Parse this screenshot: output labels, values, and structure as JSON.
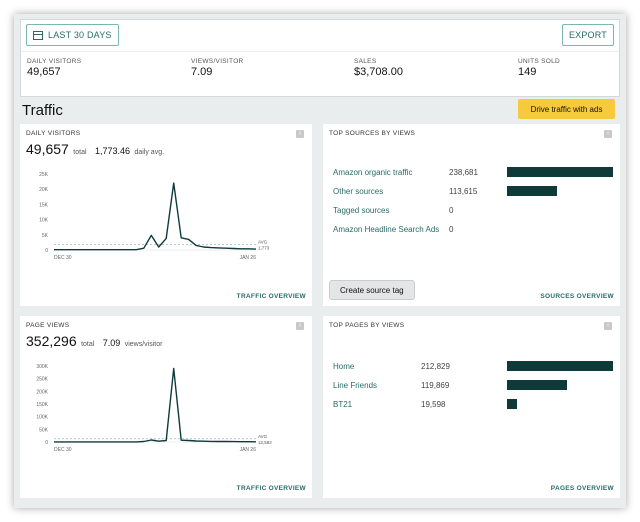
{
  "toolbar": {
    "date_range_label": "LAST 30 DAYS",
    "export_label": "EXPORT"
  },
  "metrics": [
    {
      "label": "DAILY VISITORS",
      "value": "49,657"
    },
    {
      "label": "VIEWS/VISITOR",
      "value": "7.09"
    },
    {
      "label": "SALES",
      "value": "$3,708.00"
    },
    {
      "label": "UNITS SOLD",
      "value": "149"
    }
  ],
  "section": {
    "title": "Traffic",
    "cta_label": "Drive traffic with ads"
  },
  "cards": {
    "daily_visitors": {
      "title": "DAILY VISITORS",
      "total": "49,657",
      "total_suffix": "total",
      "avg": "1,773.46",
      "avg_suffix": "daily avg.",
      "link": "TRAFFIC OVERVIEW",
      "avg_label": "AVG",
      "avg_value": "1,773"
    },
    "top_sources": {
      "title": "TOP SOURCES BY VIEWS",
      "link": "SOURCES OVERVIEW",
      "button": "Create source tag",
      "rows": [
        {
          "name": "Amazon organic traffic",
          "count": "238,681",
          "value": 238681
        },
        {
          "name": "Other sources",
          "count": "113,615",
          "value": 113615
        },
        {
          "name": "Tagged sources",
          "count": "0",
          "value": 0
        },
        {
          "name": "Amazon Headline Search Ads",
          "count": "0",
          "value": 0
        }
      ]
    },
    "page_views": {
      "title": "PAGE VIEWS",
      "total": "352,296",
      "total_suffix": "total",
      "avg": "7.09",
      "avg_suffix": "views/visitor",
      "link": "TRAFFIC OVERVIEW",
      "avg_label": "AVG",
      "avg_value": "12,582"
    },
    "top_pages": {
      "title": "TOP PAGES BY VIEWS",
      "link": "PAGES OVERVIEW",
      "rows": [
        {
          "name": "Home",
          "count": "212,829",
          "value": 212829
        },
        {
          "name": "Line Friends",
          "count": "119,869",
          "value": 119869
        },
        {
          "name": "BT21",
          "count": "19,598",
          "value": 19598
        }
      ]
    }
  },
  "chart_data": [
    {
      "type": "line",
      "title": "",
      "x": [
        "DEC 30",
        "",
        "",
        "",
        "",
        "",
        "",
        "",
        "",
        "",
        "",
        "",
        "",
        "",
        "",
        "",
        "",
        "",
        "",
        "",
        "",
        "",
        "",
        "",
        "",
        "",
        "",
        "JAN 26"
      ],
      "xticks": [
        "DEC 30",
        "JAN 26"
      ],
      "yticks": [
        "0",
        "5K",
        "10K",
        "15K",
        "20K",
        "25K"
      ],
      "ylim": [
        0,
        25000
      ],
      "series": [
        {
          "name": "",
          "values": [
            100,
            100,
            100,
            100,
            100,
            100,
            100,
            100,
            100,
            100,
            100,
            100,
            600,
            4800,
            1000,
            3800,
            22000,
            4000,
            3500,
            1500,
            1000,
            800,
            700,
            600,
            500,
            400,
            400,
            300
          ]
        }
      ],
      "avg": 1773
    },
    {
      "type": "line",
      "title": "",
      "x": [
        "DEC 30",
        "",
        "",
        "",
        "",
        "",
        "",
        "",
        "",
        "",
        "",
        "",
        "",
        "",
        "",
        "",
        "",
        "",
        "",
        "",
        "",
        "",
        "",
        "",
        "",
        "",
        "",
        "JAN 26"
      ],
      "xticks": [
        "DEC 30",
        "JAN 26"
      ],
      "yticks": [
        "0",
        "50K",
        "100K",
        "150K",
        "200K",
        "250K",
        "300K"
      ],
      "ylim": [
        0,
        300000
      ],
      "series": [
        {
          "name": "",
          "values": [
            500,
            500,
            500,
            500,
            500,
            500,
            500,
            500,
            500,
            500,
            500,
            500,
            2000,
            8000,
            3000,
            6000,
            290000,
            7000,
            6000,
            4000,
            3000,
            2500,
            2000,
            1800,
            1500,
            1200,
            1000,
            900
          ]
        }
      ],
      "avg": 12582
    }
  ]
}
